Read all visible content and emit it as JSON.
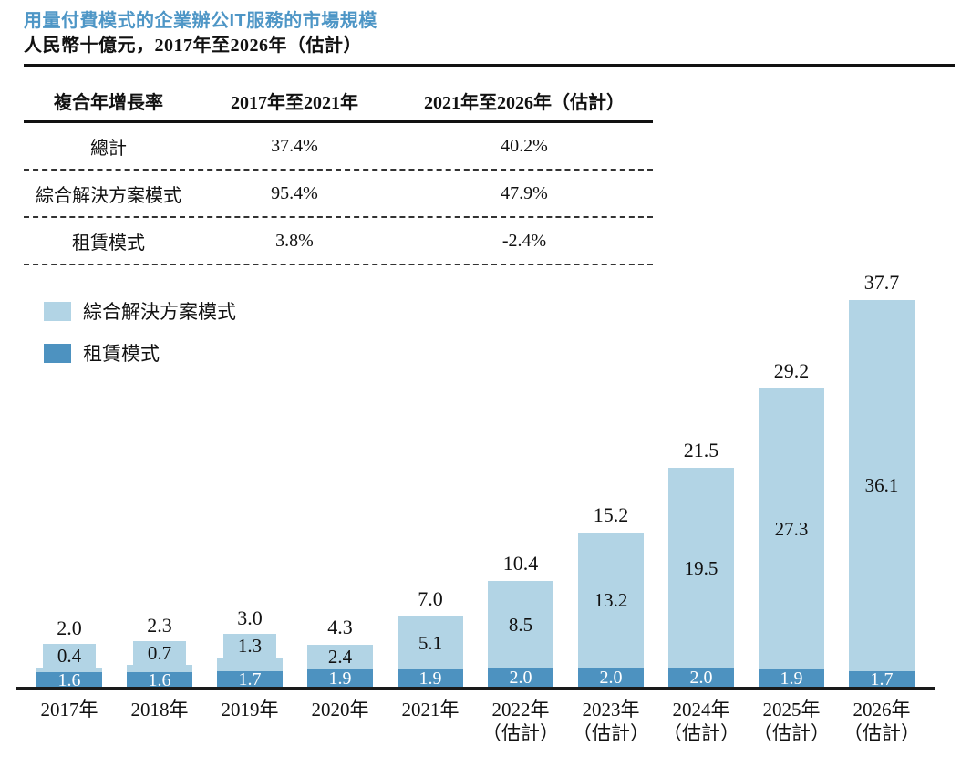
{
  "header": {
    "title": "用量付費模式的企業辦公IT服務的市場規模",
    "subtitle": "人民幣十億元，2017年至2026年（估計）"
  },
  "table": {
    "header": [
      "複合年增長率",
      "2017年至2021年",
      "2021年至2026年（估計）"
    ],
    "rows": [
      {
        "cols": [
          "總計",
          "37.4%",
          "40.2%"
        ]
      },
      {
        "cols": [
          "綜合解決方案模式",
          "95.4%",
          "47.9%"
        ]
      },
      {
        "cols": [
          "租賃模式",
          "3.8%",
          "-2.4%"
        ]
      }
    ]
  },
  "colors": {
    "title_accent": "#4e96c6",
    "solution_light_blue": "#b2d4e5",
    "rental_dark_blue": "#4d92c0",
    "axis": "#1a1a1a"
  },
  "chart_data": {
    "type": "bar",
    "subtype": "stacked",
    "title": "用量付費模式的企業辦公IT服務的市場規模",
    "ylabel": "人民幣十億元",
    "xlabel": "",
    "grid": false,
    "legend_position": "top-left",
    "ylim": [
      0,
      40
    ],
    "categories": [
      {
        "label": "2017年",
        "note": ""
      },
      {
        "label": "2018年",
        "note": ""
      },
      {
        "label": "2019年",
        "note": ""
      },
      {
        "label": "2020年",
        "note": ""
      },
      {
        "label": "2021年",
        "note": ""
      },
      {
        "label": "2022年",
        "note": "（估計）"
      },
      {
        "label": "2023年",
        "note": "（估計）"
      },
      {
        "label": "2024年",
        "note": "（估計）"
      },
      {
        "label": "2025年",
        "note": "（估計）"
      },
      {
        "label": "2026年",
        "note": "（估計）"
      }
    ],
    "series": [
      {
        "name": "綜合解決方案模式",
        "color": "#b2d4e5",
        "values": [
          0.4,
          0.7,
          1.3,
          2.4,
          5.1,
          8.5,
          13.2,
          19.5,
          27.3,
          36.1
        ]
      },
      {
        "name": "租賃模式",
        "color": "#4d92c0",
        "values": [
          1.6,
          1.6,
          1.7,
          1.9,
          1.9,
          2.0,
          2.0,
          2.0,
          1.9,
          1.7
        ]
      }
    ],
    "totals": [
      2.0,
      2.3,
      3.0,
      4.3,
      7.0,
      10.4,
      15.2,
      21.5,
      29.2,
      37.7
    ]
  }
}
